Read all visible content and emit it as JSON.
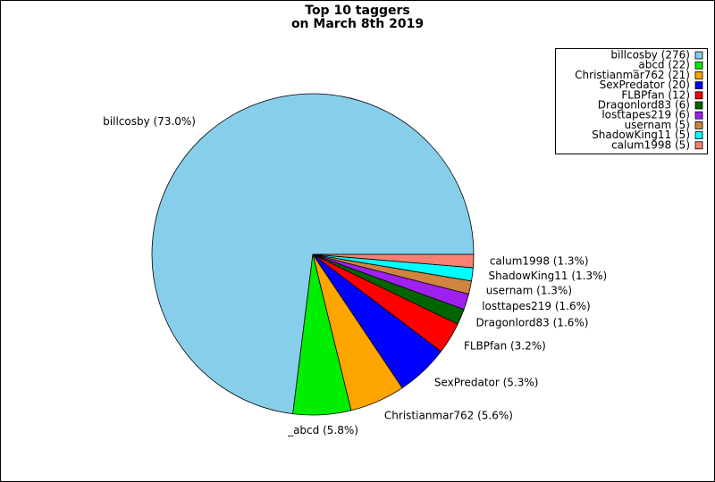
{
  "chart_data": {
    "type": "pie",
    "title": [
      "Top 10 taggers",
      "on March 8th 2019"
    ],
    "legend_labels": [
      "billcosby (276)",
      "_abcd (22)",
      "Christianmar762 (21)",
      "SexPredator (20)",
      "FLBPfan (12)",
      "Dragonlord83 (6)",
      "losttapes219 (6)",
      "usernam (5)",
      "ShadowKing11 (5)",
      "calum1998 (5)"
    ],
    "values": [
      276,
      22,
      21,
      20,
      12,
      6,
      6,
      5,
      5,
      5
    ],
    "slice_labels": [
      "billcosby (73.0%)",
      "_abcd (5.8%)",
      "Christianmar762 (5.6%)",
      "SexPredator (5.3%)",
      "FLBPfan (3.2%)",
      "Dragonlord83 (1.6%)",
      "losttapes219 (1.6%)",
      "usernam (1.3%)",
      "ShadowKing11 (1.3%)",
      "calum1998 (1.3%)"
    ],
    "colors": [
      "#87ceeb",
      "#00ee00",
      "#ffa500",
      "#0000ff",
      "#ff0000",
      "#006400",
      "#a020f0",
      "#cd853f",
      "#00ffff",
      "#fa8072"
    ],
    "legend": "upper right"
  }
}
